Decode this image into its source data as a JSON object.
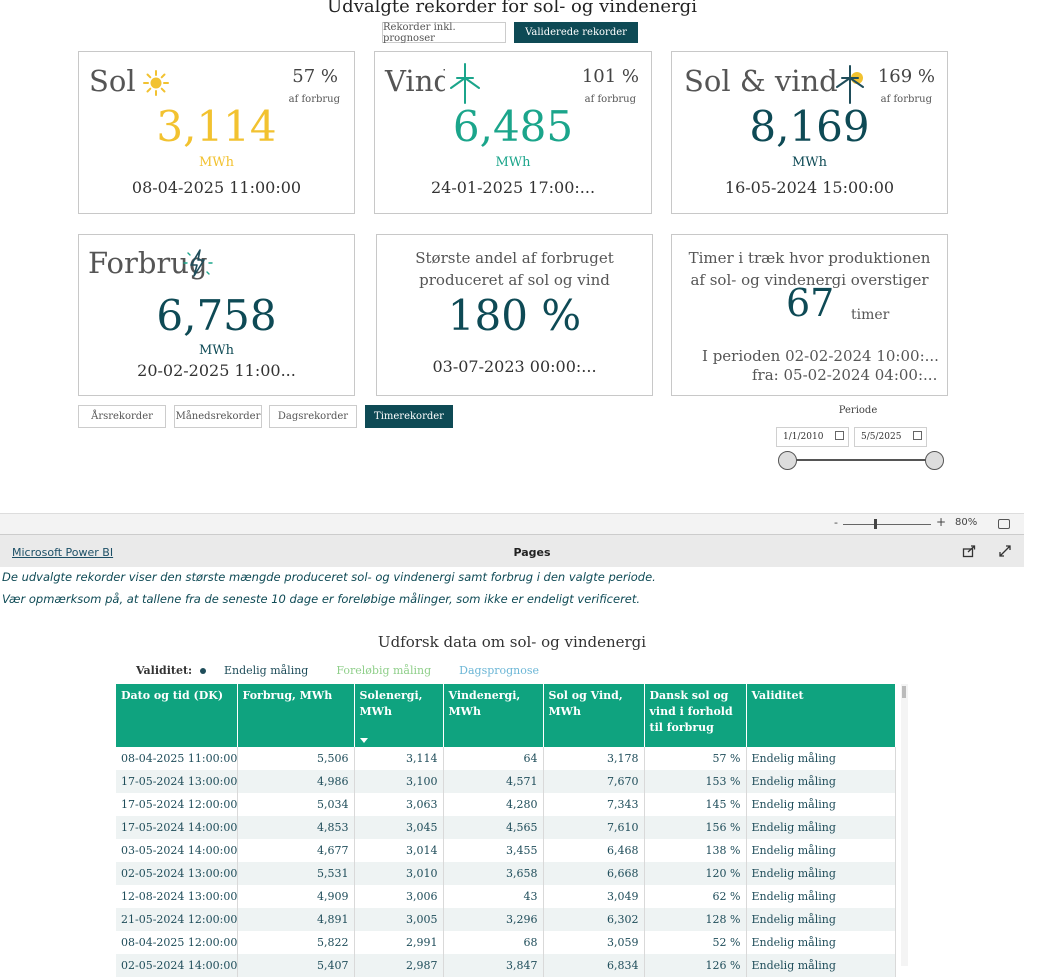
{
  "report": {
    "title": "Udvalgte rekorder for sol- og vindenergi",
    "toggle": {
      "inkl": "Rekorder inkl. prognoser",
      "valid": "Validerede rekorder"
    }
  },
  "colors": {
    "sun": "#f2c230",
    "wind": "#1ba58b",
    "combined": "#0e4a55",
    "accent": "#0fa37f"
  },
  "cards": {
    "sol": {
      "title": "Sol",
      "pct": "57 %",
      "pct_sub": "af forbrug",
      "value": "3,114",
      "unit": "MWh",
      "date": "08-04-2025 11:00:00"
    },
    "vind": {
      "title": "Vind",
      "pct": "101 %",
      "pct_sub": "af forbrug",
      "value": "6,485",
      "unit": "MWh",
      "date": "24-01-2025 17:00:..."
    },
    "solvind": {
      "title": "Sol & vind",
      "pct": "169 %",
      "pct_sub": "af forbrug",
      "value": "8,169",
      "unit": "MWh",
      "date": "16-05-2024 15:00:00"
    },
    "forbrug": {
      "title": "Forbrug",
      "value": "6,758",
      "unit": "MWh",
      "date": "20-02-2025 11:00..."
    },
    "andel": {
      "desc1": "Største andel af forbruget",
      "desc2": "produceret af sol og vind",
      "value": "180 %",
      "date": "03-07-2023 00:00:..."
    },
    "timer": {
      "desc1": "Timer i træk hvor produktionen",
      "desc2": "af sol- og vindenergi overstiger",
      "value": "67",
      "unit": "timer",
      "period_from_label": "I perioden",
      "period_from": "02-02-2024 10:00:...",
      "period_to_label": "fra:",
      "period_to": "05-02-2024 04:00:..."
    }
  },
  "period_buttons": {
    "aar": "Årsrekorder",
    "maaned": "Månedsrekorder",
    "dag": "Dagsrekorder",
    "time": "Timerekorder"
  },
  "periode": {
    "label": "Periode",
    "from": "1/1/2010",
    "to": "5/5/2025"
  },
  "pbi": {
    "zoom": "80%",
    "link": "Microsoft Power BI",
    "pages": "Pages"
  },
  "description": {
    "line1": "De udvalgte rekorder viser den største mængde produceret sol- og vindenergi samt forbrug i den valgte periode.",
    "line2": "Vær opmærksom på, at tallene fra de seneste 10 dage er foreløbige målinger, som ikke er endeligt verificeret."
  },
  "table": {
    "title": "Udforsk data om sol- og vindenergi",
    "legend": {
      "label": "Validitet:",
      "items": [
        "Endelig måling",
        "Foreløbig måling",
        "Dagsprognose"
      ],
      "colors": [
        "#1f4d5a",
        "#8fcf8a",
        "#6bb6d6"
      ]
    },
    "headers": [
      "Dato og tid (DK)",
      "Forbrug, MWh",
      "Solenergi, MWh",
      "Vindenergi, MWh",
      "Sol og Vind, MWh",
      "Dansk sol og vind i forhold til forbrug",
      "Validitet"
    ],
    "rows": [
      [
        "08-04-2025 11:00:00",
        "5,506",
        "3,114",
        "64",
        "3,178",
        "57 %",
        "Endelig måling"
      ],
      [
        "17-05-2024 13:00:00",
        "4,986",
        "3,100",
        "4,571",
        "7,670",
        "153 %",
        "Endelig måling"
      ],
      [
        "17-05-2024 12:00:00",
        "5,034",
        "3,063",
        "4,280",
        "7,343",
        "145 %",
        "Endelig måling"
      ],
      [
        "17-05-2024 14:00:00",
        "4,853",
        "3,045",
        "4,565",
        "7,610",
        "156 %",
        "Endelig måling"
      ],
      [
        "03-05-2024 14:00:00",
        "4,677",
        "3,014",
        "3,455",
        "6,468",
        "138 %",
        "Endelig måling"
      ],
      [
        "02-05-2024 13:00:00",
        "5,531",
        "3,010",
        "3,658",
        "6,668",
        "120 %",
        "Endelig måling"
      ],
      [
        "12-08-2024 13:00:00",
        "4,909",
        "3,006",
        "43",
        "3,049",
        "62 %",
        "Endelig måling"
      ],
      [
        "21-05-2024 12:00:00",
        "4,891",
        "3,005",
        "3,296",
        "6,302",
        "128 %",
        "Endelig måling"
      ],
      [
        "08-04-2025 12:00:00",
        "5,822",
        "2,991",
        "68",
        "3,059",
        "52 %",
        "Endelig måling"
      ],
      [
        "02-05-2024 14:00:00",
        "5,407",
        "2,987",
        "3,847",
        "6,834",
        "126 %",
        "Endelig måling"
      ]
    ]
  }
}
